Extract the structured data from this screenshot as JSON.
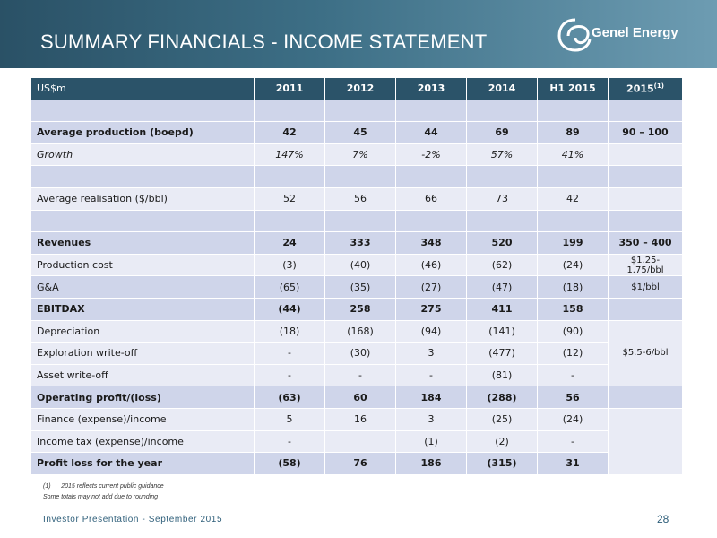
{
  "header": {
    "title": "SUMMARY FINANCIALS - INCOME STATEMENT",
    "logo_text": "Genel Energy",
    "logo_icon": "genel-swirl-logo"
  },
  "table": {
    "columns": [
      "US$m",
      "2011",
      "2012",
      "2013",
      "2014",
      "H1 2015",
      "2015"
    ],
    "last_column_footnote": "(1)",
    "rows": [
      {
        "label": "",
        "values": [
          "",
          "",
          "",
          "",
          ""
        ],
        "guidance": ""
      },
      {
        "label": "Average production  (boepd)",
        "values": [
          "42",
          "45",
          "44",
          "69",
          "89"
        ],
        "guidance": "90 – 100"
      },
      {
        "label": "Growth",
        "values": [
          "147%",
          "7%",
          "-2%",
          "57%",
          "41%"
        ],
        "guidance": ""
      },
      {
        "label": "",
        "values": [
          "",
          "",
          "",
          "",
          ""
        ],
        "guidance": ""
      },
      {
        "label": "Average realisation ($/bbl)",
        "values": [
          "52",
          "56",
          "66",
          "73",
          "42"
        ],
        "guidance": ""
      },
      {
        "label": "",
        "values": [
          "",
          "",
          "",
          "",
          ""
        ],
        "guidance": ""
      },
      {
        "label": "Revenues",
        "values": [
          "24",
          "333",
          "348",
          "520",
          "199"
        ],
        "guidance": "350 – 400"
      },
      {
        "label": "Production cost",
        "values": [
          "(3)",
          "(40)",
          "(46)",
          "(62)",
          "(24)"
        ],
        "guidance": "$1.25- 1.75/bbl"
      },
      {
        "label": "G&A",
        "values": [
          "(65)",
          "(35)",
          "(27)",
          "(47)",
          "(18)"
        ],
        "guidance": "$1/bbl"
      },
      {
        "label": "EBITDAX",
        "values": [
          "(44)",
          "258",
          "275",
          "411",
          "158"
        ],
        "guidance": ""
      },
      {
        "label": "Depreciation",
        "values": [
          "(18)",
          "(168)",
          "(94)",
          "(141)",
          "(90)"
        ],
        "guidance": "$5.5-6/bbl"
      },
      {
        "label": "Exploration write-off",
        "values": [
          "-",
          "(30)",
          "3",
          "(477)",
          "(12)"
        ],
        "guidance": ""
      },
      {
        "label": "Asset write-off",
        "values": [
          "-",
          "-",
          "-",
          "(81)",
          "-"
        ],
        "guidance": ""
      },
      {
        "label": "Operating profit/(loss)",
        "values": [
          "(63)",
          "60",
          "184",
          "(288)",
          "56"
        ],
        "guidance": ""
      },
      {
        "label": "Finance (expense)/income",
        "values": [
          "5",
          "16",
          "3",
          "(25)",
          "(24)"
        ],
        "guidance": ""
      },
      {
        "label": "Income tax (expense)/income",
        "values": [
          "-",
          "",
          "(1)",
          "(2)",
          "-"
        ],
        "guidance": ""
      },
      {
        "label": "Profit loss for the year",
        "values": [
          "(58)",
          "76",
          "186",
          "(315)",
          "31"
        ],
        "guidance": ""
      }
    ]
  },
  "footnotes": {
    "note1_marker": "(1)",
    "note1_text": "2015 reflects current public guidance",
    "note2": "Some totals may not add due to rounding"
  },
  "footer": {
    "text": "Investor Presentation - September 2015",
    "page_number": "28"
  },
  "colors": {
    "header_bg": "#2b5369",
    "row_light": "#e9ebf5",
    "row_blue": "#cfd5ea",
    "footer_text": "#2f5f7a"
  }
}
